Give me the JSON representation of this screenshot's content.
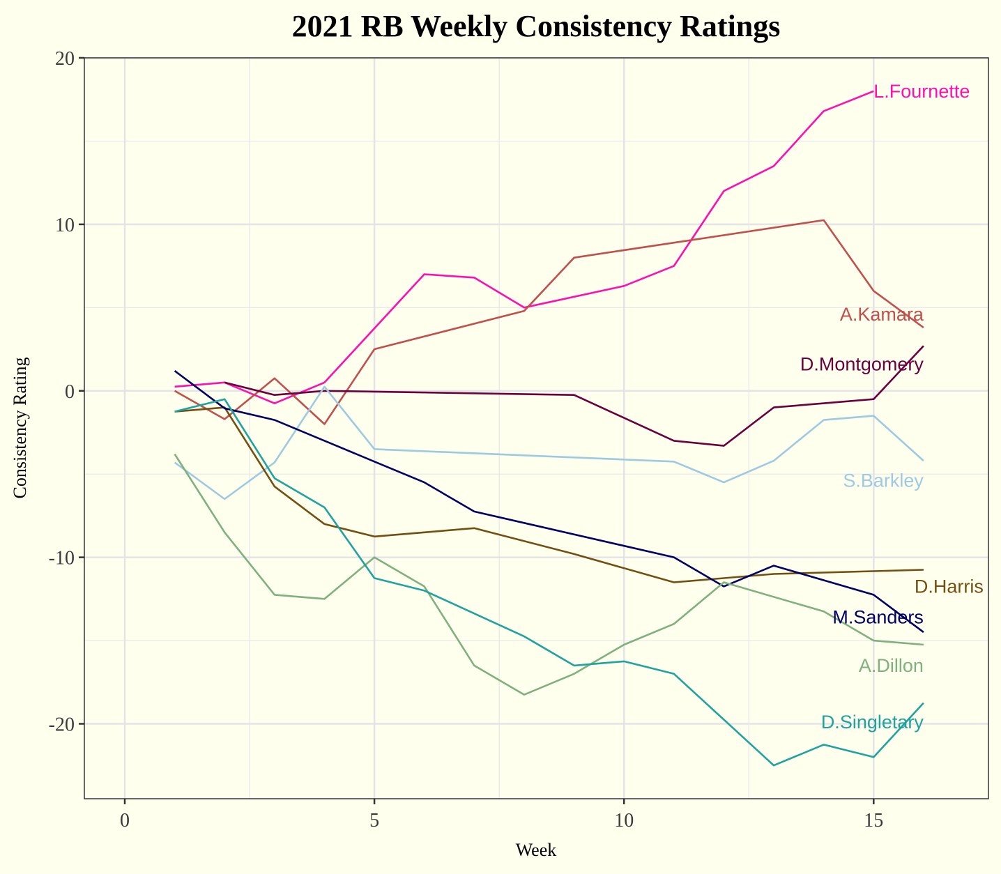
{
  "chart_data": {
    "type": "line",
    "title": "2021 RB Weekly Consistency Ratings",
    "xlabel": "Week",
    "ylabel": "Consistency Rating",
    "xlim": [
      -0.81,
      17.3
    ],
    "ylim": [
      -24.5,
      20.0
    ],
    "x_ticks": [
      0,
      5,
      10,
      15
    ],
    "x_minor_ticks": [
      2.5,
      7.5,
      12.5
    ],
    "y_ticks": [
      -20,
      -10,
      0,
      10,
      20
    ],
    "y_minor_ticks": [
      -15,
      -5,
      5,
      15
    ],
    "grid": true,
    "legend": "direct-labels-right",
    "background": "#FFFFEE",
    "series": [
      {
        "name": "L.Fournette",
        "color": "#FF0FAF",
        "x": [
          1,
          2,
          3,
          4,
          6,
          7,
          8,
          10,
          11,
          12,
          13,
          14,
          15
        ],
        "y": [
          0.25,
          0.5,
          -0.75,
          0.5,
          7.0,
          6.8,
          5.0,
          6.3,
          7.5,
          12.0,
          13.5,
          16.8,
          18.0
        ]
      },
      {
        "name": "A.Kamara",
        "color": "#C0504D",
        "x": [
          1,
          2,
          3,
          4,
          5,
          8,
          9,
          14,
          15,
          16
        ],
        "y": [
          0.0,
          -1.7,
          0.75,
          -2.0,
          2.5,
          4.8,
          8.0,
          10.25,
          6.0,
          3.8
        ]
      },
      {
        "name": "D.Montgomery",
        "color": "#6B003F",
        "x": [
          2,
          3,
          4,
          5,
          9,
          11,
          12,
          13,
          15,
          16
        ],
        "y": [
          0.5,
          -0.25,
          0.0,
          -0.05,
          -0.25,
          -3.0,
          -3.3,
          -1.0,
          -0.5,
          2.7
        ]
      },
      {
        "name": "S.Barkley",
        "color": "#9ECAE1",
        "x": [
          1,
          2,
          3,
          4,
          5,
          11,
          12,
          13,
          14,
          15,
          16
        ],
        "y": [
          -4.3,
          -6.5,
          -4.3,
          0.25,
          -3.5,
          -4.25,
          -5.5,
          -4.2,
          -1.75,
          -1.5,
          -4.2
        ]
      },
      {
        "name": "D.Harris",
        "color": "#735012",
        "x": [
          1,
          2,
          3,
          4,
          5,
          7,
          9,
          11,
          13,
          16
        ],
        "y": [
          -1.25,
          -1.0,
          -5.75,
          -8.0,
          -8.75,
          -8.25,
          -9.8,
          -11.5,
          -11.0,
          -10.75
        ]
      },
      {
        "name": "M.Sanders",
        "color": "#000066",
        "x": [
          1,
          2,
          3,
          4,
          5,
          6,
          7,
          11,
          12,
          13,
          15,
          16
        ],
        "y": [
          1.2,
          -1.05,
          -1.75,
          -3.0,
          -4.25,
          -5.5,
          -7.25,
          -10.0,
          -11.75,
          -10.5,
          -12.25,
          -14.5
        ]
      },
      {
        "name": "A.Dillon",
        "color": "#7FB17F",
        "x": [
          1,
          2,
          3,
          4,
          5,
          6,
          7,
          8,
          9,
          10,
          11,
          12,
          14,
          15,
          16
        ],
        "y": [
          -3.8,
          -8.5,
          -12.25,
          -12.5,
          -10.0,
          -11.75,
          -16.5,
          -18.25,
          -17.0,
          -15.25,
          -14.0,
          -11.5,
          -13.25,
          -15.0,
          -15.25
        ]
      },
      {
        "name": "D.Singletary",
        "color": "#20A39E",
        "x": [
          1,
          2,
          3,
          4,
          5,
          6,
          8,
          9,
          10,
          11,
          13,
          14,
          15,
          16
        ],
        "y": [
          -1.25,
          -0.5,
          -5.25,
          -7.0,
          -11.25,
          -12.0,
          -14.75,
          -16.5,
          -16.25,
          -17.0,
          -22.5,
          -21.25,
          -22.0,
          -18.75
        ]
      }
    ],
    "labels": [
      {
        "text": "L.Fournette",
        "series": 0,
        "anchor_week": 15,
        "anchor_value": 18.0,
        "align": "start"
      },
      {
        "text": "A.Kamara",
        "series": 1,
        "anchor_week": 16.0,
        "anchor_value": 4.6,
        "align": "end"
      },
      {
        "text": "D.Montgomery",
        "series": 2,
        "anchor_week": 16.0,
        "anchor_value": 1.6,
        "align": "end"
      },
      {
        "text": "S.Barkley",
        "series": 3,
        "anchor_week": 16.0,
        "anchor_value": -5.4,
        "align": "end"
      },
      {
        "text": "D.Harris",
        "series": 4,
        "anchor_week": 17.2,
        "anchor_value": -11.75,
        "align": "end"
      },
      {
        "text": "M.Sanders",
        "series": 5,
        "anchor_week": 16.0,
        "anchor_value": -13.6,
        "align": "end"
      },
      {
        "text": "A.Dillon",
        "series": 6,
        "anchor_week": 16.0,
        "anchor_value": -16.5,
        "align": "end"
      },
      {
        "text": "D.Singletary",
        "series": 7,
        "anchor_week": 16.0,
        "anchor_value": -19.9,
        "align": "end"
      }
    ]
  }
}
